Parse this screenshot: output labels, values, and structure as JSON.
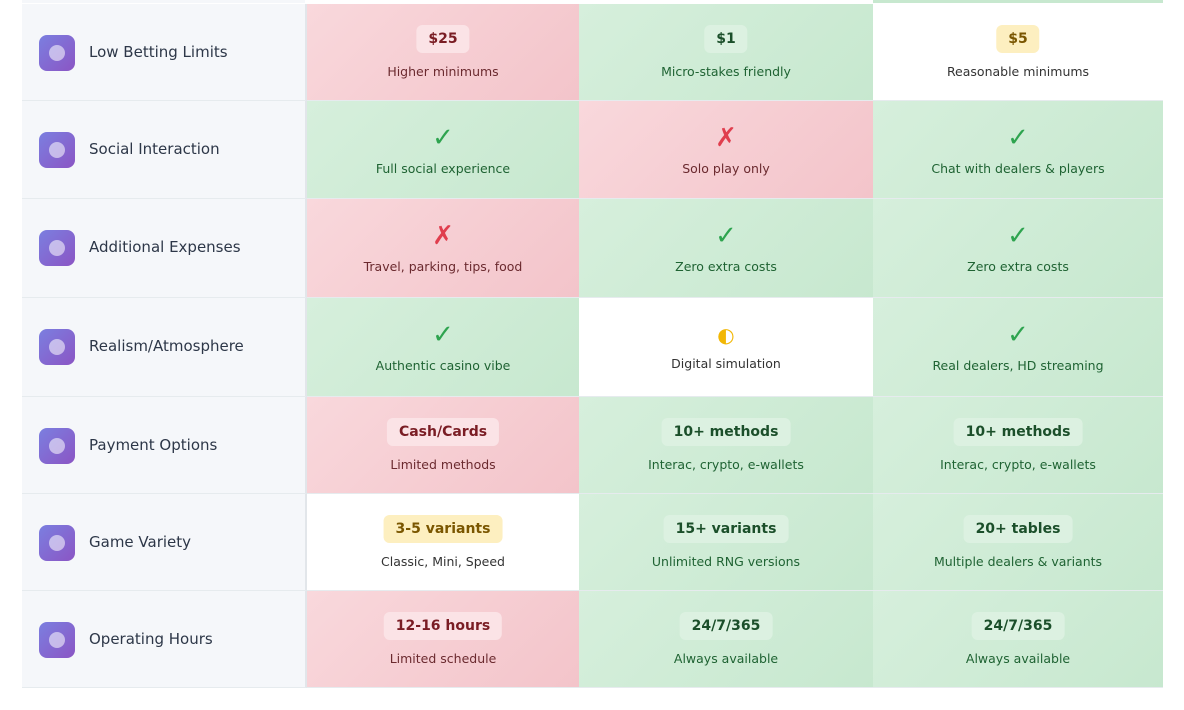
{
  "table": {
    "rows": [
      {
        "label": "Low Betting Limits",
        "cells": [
          {
            "main": "$25",
            "note": "Higher minimums",
            "tone": "red"
          },
          {
            "main": "$1",
            "note": "Micro-stakes friendly",
            "tone": "green"
          },
          {
            "main": "$5",
            "note": "Reasonable minimums",
            "tone": "white"
          }
        ]
      },
      {
        "label": "Social Interaction",
        "cells": [
          {
            "symbol": "✓",
            "note": "Full social experience",
            "tone": "green"
          },
          {
            "symbol": "✗",
            "note": "Solo play only",
            "tone": "red"
          },
          {
            "symbol": "✓",
            "note": "Chat with dealers & players",
            "tone": "green"
          }
        ]
      },
      {
        "label": "Additional Expenses",
        "cells": [
          {
            "symbol": "✗",
            "note": "Travel, parking, tips, food",
            "tone": "red"
          },
          {
            "symbol": "✓",
            "note": "Zero extra costs",
            "tone": "green"
          },
          {
            "symbol": "✓",
            "note": "Zero extra costs",
            "tone": "green"
          }
        ]
      },
      {
        "label": "Realism/Atmosphere",
        "cells": [
          {
            "symbol": "✓",
            "note": "Authentic casino vibe",
            "tone": "green"
          },
          {
            "symbol": "◐",
            "note": "Digital simulation",
            "tone": "white"
          },
          {
            "symbol": "✓",
            "note": "Real dealers, HD streaming",
            "tone": "green"
          }
        ]
      },
      {
        "label": "Payment Options",
        "cells": [
          {
            "main": "Cash/Cards",
            "note": "Limited methods",
            "tone": "red"
          },
          {
            "main": "10+ methods",
            "note": "Interac, crypto, e-wallets",
            "tone": "green"
          },
          {
            "main": "10+ methods",
            "note": "Interac, crypto, e-wallets",
            "tone": "green"
          }
        ]
      },
      {
        "label": "Game Variety",
        "cells": [
          {
            "main": "3-5 variants",
            "note": "Classic, Mini, Speed",
            "tone": "white"
          },
          {
            "main": "15+ variants",
            "note": "Unlimited RNG versions",
            "tone": "green"
          },
          {
            "main": "20+ tables",
            "note": "Multiple dealers & variants",
            "tone": "green"
          }
        ]
      },
      {
        "label": "Operating Hours",
        "cells": [
          {
            "main": "12-16 hours",
            "note": "Limited schedule",
            "tone": "red"
          },
          {
            "main": "24/7/365",
            "note": "Always available",
            "tone": "green"
          },
          {
            "main": "24/7/365",
            "note": "Always available",
            "tone": "green"
          }
        ]
      }
    ]
  }
}
